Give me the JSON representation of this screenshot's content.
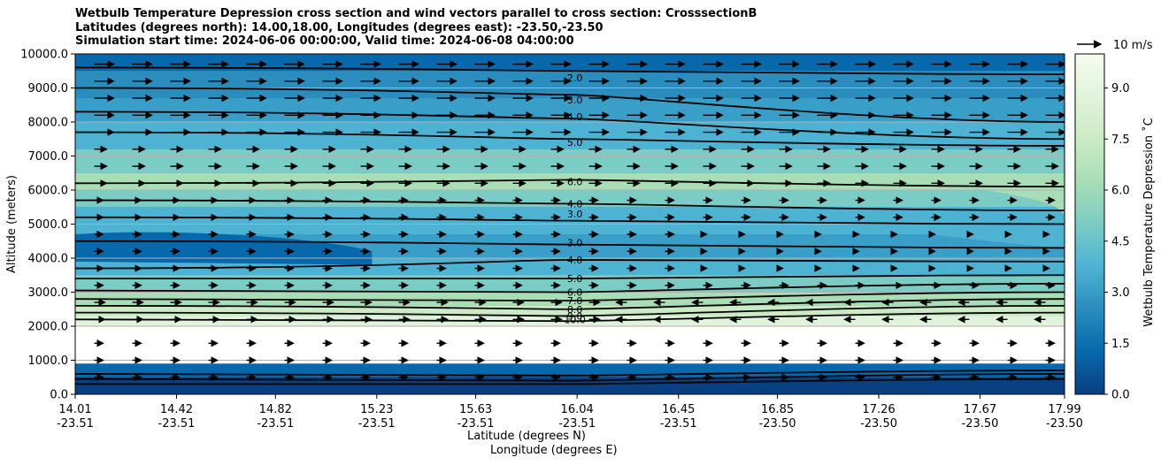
{
  "chart_data": {
    "type": "contour",
    "title_lines": [
      "Wetbulb Temperature Depression cross section and wind vectors parallel to cross section: CrosssectionB",
      "Latitudes (degrees north): 14.00,18.00, Longitudes (degrees east): -23.50,-23.50",
      "Simulation start time: 2024-06-06 00:00:00, Valid time: 2024-06-08 04:00:00"
    ],
    "xlabel_1": "Latitude (degrees N)",
    "xlabel_2": "Longitude (degrees E)",
    "ylabel": "Altitude (meters)",
    "colorbar_label": "Wetbulb Temperature Depression ˚C",
    "quiver_key": "10 m/s",
    "ylim": [
      0,
      10000
    ],
    "y_ticks": [
      "0.0",
      "1000.0",
      "2000.0",
      "3000.0",
      "4000.0",
      "5000.0",
      "6000.0",
      "7000.0",
      "8000.0",
      "9000.0",
      "10000.0"
    ],
    "x_ticks": [
      {
        "lat": "14.01",
        "lon": "-23.51"
      },
      {
        "lat": "14.42",
        "lon": "-23.51"
      },
      {
        "lat": "14.82",
        "lon": "-23.51"
      },
      {
        "lat": "15.23",
        "lon": "-23.51"
      },
      {
        "lat": "15.63",
        "lon": "-23.51"
      },
      {
        "lat": "16.04",
        "lon": "-23.51"
      },
      {
        "lat": "16.45",
        "lon": "-23.51"
      },
      {
        "lat": "16.85",
        "lon": "-23.50"
      },
      {
        "lat": "17.26",
        "lon": "-23.50"
      },
      {
        "lat": "17.67",
        "lon": "-23.50"
      },
      {
        "lat": "17.99",
        "lon": "-23.50"
      }
    ],
    "colorbar_ticks": [
      "0.0",
      "1.5",
      "3.0",
      "4.5",
      "6.0",
      "7.5",
      "9.0"
    ],
    "colorbar_range": [
      0,
      10
    ],
    "contour_labels": [
      {
        "text": "2.0",
        "alt": 9300
      },
      {
        "text": "3.0",
        "alt": 8650
      },
      {
        "text": "4.0",
        "alt": 8150
      },
      {
        "text": "5.0",
        "alt": 7400
      },
      {
        "text": "6.0",
        "alt": 6250
      },
      {
        "text": "4.0",
        "alt": 5600
      },
      {
        "text": "3.0",
        "alt": 5300
      },
      {
        "text": "3.0",
        "alt": 4450
      },
      {
        "text": "4.0",
        "alt": 3950
      },
      {
        "text": "5.0",
        "alt": 3400
      },
      {
        "text": "6.0",
        "alt": 3000
      },
      {
        "text": "7.0",
        "alt": 2750
      },
      {
        "text": "8.0",
        "alt": 2500
      },
      {
        "text": "9.0",
        "alt": 2300
      },
      {
        "text": "10.0",
        "alt": 2200
      }
    ],
    "palette": [
      "#084081",
      "#0868ac",
      "#2b8cbe",
      "#4eb3d3",
      "#7bccc4",
      "#a8ddb5",
      "#ccebc5",
      "#e0f3db",
      "#f7fcf0"
    ]
  }
}
